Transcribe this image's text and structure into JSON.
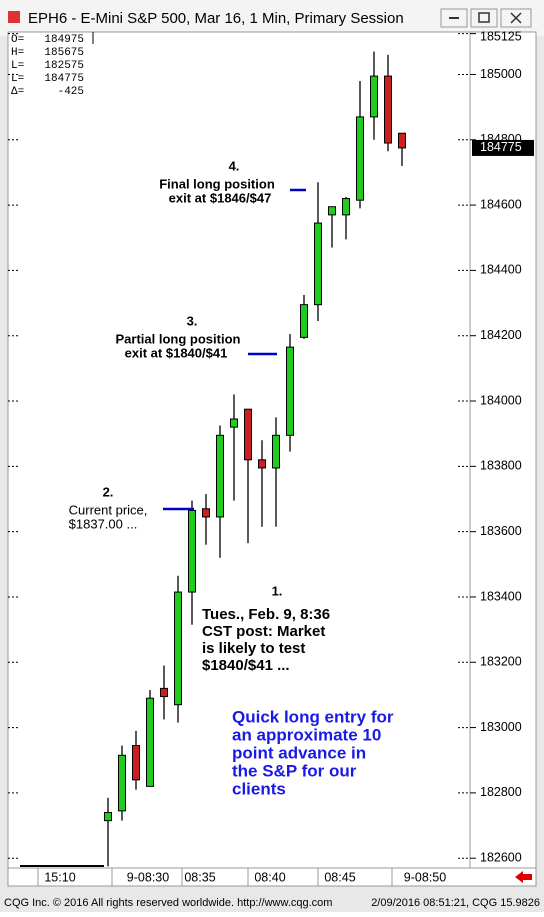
{
  "window_title": "EPH6 - E-Mini S&P 500, Mar 16, 1 Min, Primary Session",
  "footer_left": "CQG Inc. © 2016 All rights reserved worldwide. http://www.cqg.com",
  "footer_right": "2/09/2016 08:51:21, CQG 15.9826",
  "header": [
    {
      "label": "O=",
      "value": 184975
    },
    {
      "label": "H=",
      "value": 185675
    },
    {
      "label": "L=",
      "value": 182575
    },
    {
      "label": "L=",
      "value": 184775
    },
    {
      "label": "Δ=",
      "value": -425
    }
  ],
  "chart_data": {
    "type": "candlestick",
    "up_color": "#1fcc1f",
    "down_color": "#cc1f1f",
    "ylim": [
      182570,
      185130
    ],
    "yticks": [
      182600,
      182800,
      183000,
      183200,
      183400,
      183600,
      183800,
      184000,
      184200,
      184400,
      184600,
      184800,
      185000,
      185125
    ],
    "time_labels": [
      "15:10",
      "9-08:30",
      "08:35",
      "08:40",
      "08:45",
      "9-08:50"
    ],
    "candles": [
      {
        "open": 182715,
        "high": 182785,
        "low": 182575,
        "close": 182740
      },
      {
        "open": 182745,
        "high": 182945,
        "low": 182715,
        "close": 182915
      },
      {
        "open": 182945,
        "high": 182990,
        "low": 182810,
        "close": 182840
      },
      {
        "open": 182820,
        "high": 183115,
        "low": 182820,
        "close": 183090
      },
      {
        "open": 183120,
        "high": 183190,
        "low": 183025,
        "close": 183095
      },
      {
        "open": 183070,
        "high": 183465,
        "low": 183015,
        "close": 183415
      },
      {
        "open": 183415,
        "high": 183695,
        "low": 183315,
        "close": 183665
      },
      {
        "open": 183670,
        "high": 183715,
        "low": 183560,
        "close": 183645
      },
      {
        "open": 183645,
        "high": 183925,
        "low": 183520,
        "close": 183895
      },
      {
        "open": 183920,
        "high": 184020,
        "low": 183695,
        "close": 183945
      },
      {
        "open": 183975,
        "high": 183975,
        "low": 183565,
        "close": 183820
      },
      {
        "open": 183820,
        "high": 183880,
        "low": 183615,
        "close": 183795
      },
      {
        "open": 183795,
        "high": 183950,
        "low": 183615,
        "close": 183895
      },
      {
        "open": 183895,
        "high": 184205,
        "low": 183845,
        "close": 184165
      },
      {
        "open": 184195,
        "high": 184325,
        "low": 184190,
        "close": 184295
      },
      {
        "open": 184295,
        "high": 184670,
        "low": 184245,
        "close": 184545
      },
      {
        "open": 184570,
        "high": 184595,
        "low": 184470,
        "close": 184595
      },
      {
        "open": 184570,
        "high": 184625,
        "low": 184495,
        "close": 184620
      },
      {
        "open": 184615,
        "high": 184980,
        "low": 184590,
        "close": 184870
      },
      {
        "open": 184870,
        "high": 185070,
        "low": 184800,
        "close": 184995
      },
      {
        "open": 184995,
        "high": 185060,
        "low": 184765,
        "close": 184790
      },
      {
        "open": 184820,
        "high": 184820,
        "low": 184720,
        "close": 184775
      }
    ],
    "annotations": [
      {
        "number": "4.",
        "lines": [
          "Final long position",
          "exit at $1846/$47"
        ]
      },
      {
        "number": "3.",
        "lines": [
          "Partial long position",
          "exit at $1840/$41"
        ]
      },
      {
        "number": "2.",
        "lines": [
          "Current price,",
          "$1837.00 ..."
        ]
      },
      {
        "number": "1.",
        "lines": [
          "Tues., Feb. 9, 8:36",
          "CST post: Market",
          "is likely to test",
          "$1840/$41 ..."
        ]
      }
    ],
    "callout": [
      "Quick long entry for",
      "an approximate 10",
      "point advance in",
      "the S&P for our",
      "clients"
    ]
  }
}
